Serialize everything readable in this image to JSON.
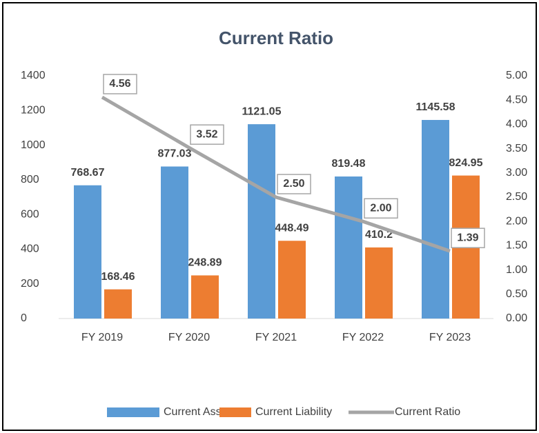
{
  "chart_data": {
    "type": "bar",
    "title": "Current Ratio",
    "categories": [
      "FY 2019",
      "FY 2020",
      "FY 2021",
      "FY 2022",
      "FY 2023"
    ],
    "series": [
      {
        "name": "Current Assets",
        "color": "#5b9bd5",
        "values": [
          768.67,
          877.03,
          1121.05,
          819.48,
          1145.58
        ]
      },
      {
        "name": "Current Liability",
        "color": "#ed7d31",
        "values": [
          168.46,
          248.89,
          448.49,
          410.2,
          824.95
        ]
      },
      {
        "name": "Current Ratio",
        "color": "#a5a5a5",
        "axis": "y2",
        "type": "line",
        "values": [
          4.56,
          3.52,
          2.5,
          2.0,
          1.39
        ],
        "value_labels": [
          "4.56",
          "3.52",
          "2.50",
          "2.00",
          "1.39"
        ]
      }
    ],
    "ylim": [
      0,
      1400
    ],
    "yticks": [
      0,
      200,
      400,
      600,
      800,
      1000,
      1200,
      1400
    ],
    "y2lim": [
      0,
      5
    ],
    "y2ticks": [
      {
        "value": 0,
        "label": "0.00"
      },
      {
        "value": 0.5,
        "label": "0.50"
      },
      {
        "value": 1,
        "label": "1.00"
      },
      {
        "value": 1.5,
        "label": "1.50"
      },
      {
        "value": 2,
        "label": "2.00"
      },
      {
        "value": 2.5,
        "label": "2.50"
      },
      {
        "value": 3,
        "label": "3.00"
      },
      {
        "value": 3.5,
        "label": "3.50"
      },
      {
        "value": 4,
        "label": "4.00"
      },
      {
        "value": 4.5,
        "label": "4.50"
      },
      {
        "value": 5,
        "label": "5.00"
      }
    ],
    "legend": "bottom"
  }
}
